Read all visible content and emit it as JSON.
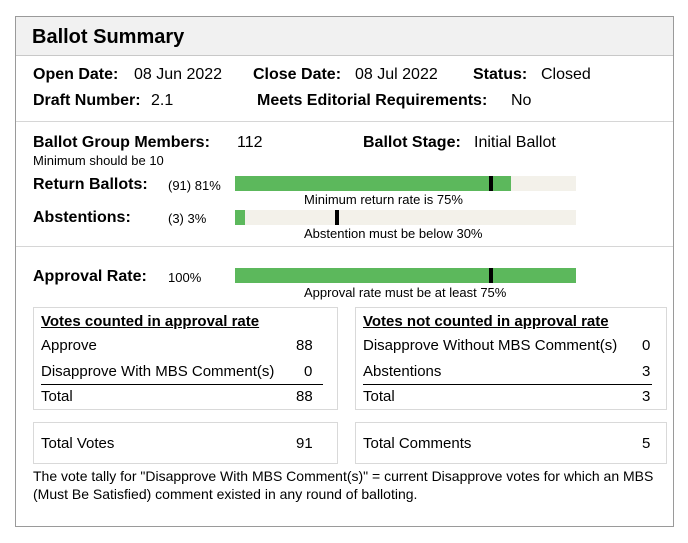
{
  "title": "Ballot Summary",
  "info": {
    "open_date_label": "Open Date:",
    "open_date": "08 Jun 2022",
    "close_date_label": "Close Date:",
    "close_date": "08 Jul 2022",
    "status_label": "Status:",
    "status": "Closed",
    "draft_label": "Draft Number:",
    "draft": "2.1",
    "editorial_label": "Meets Editorial Requirements:",
    "editorial": "No"
  },
  "group": {
    "members_label": "Ballot Group Members:",
    "members": "112",
    "members_note": "Minimum should be 10",
    "stage_label": "Ballot Stage:",
    "stage": "Initial Ballot"
  },
  "return_ballots": {
    "label": "Return Ballots:",
    "value": "(91) 81%",
    "percent": 81,
    "threshold": 75,
    "note": "Minimum return rate is 75%"
  },
  "abstentions": {
    "label": "Abstentions:",
    "value": "(3) 3%",
    "percent": 3,
    "threshold": 30,
    "note": "Abstention must be below 30%"
  },
  "approval": {
    "label": "Approval Rate:",
    "value": "100%",
    "percent": 100,
    "threshold": 75,
    "note": "Approval rate must be at least 75%"
  },
  "counted": {
    "heading": "Votes counted in approval rate",
    "rows": [
      {
        "label": "Approve",
        "value": "88"
      },
      {
        "label": "Disapprove With MBS Comment(s)",
        "value": "0"
      }
    ],
    "total_label": "Total",
    "total": "88"
  },
  "not_counted": {
    "heading": "Votes not counted in approval rate",
    "rows": [
      {
        "label": "Disapprove Without MBS Comment(s)",
        "value": "0"
      },
      {
        "label": "Abstentions",
        "value": "3"
      }
    ],
    "total_label": "Total",
    "total": "3"
  },
  "totals": {
    "votes_label": "Total Votes",
    "votes": "91",
    "comments_label": "Total Comments",
    "comments": "5"
  },
  "footnote": "The vote tally for \"Disapprove With MBS Comment(s)\" = current Disapprove votes for which an MBS (Must Be Satisfied) comment existed in any round of balloting.",
  "colors": {
    "bar_fill": "#5cb85c",
    "bar_track": "#f3f1ea",
    "marker": "#000000"
  }
}
